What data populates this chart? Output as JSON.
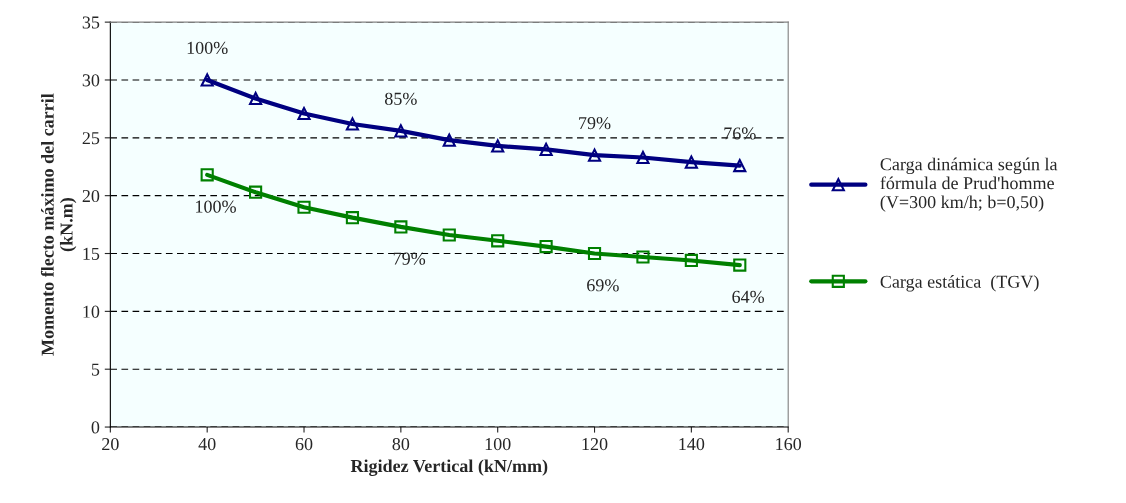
{
  "chart_data": {
    "type": "line",
    "xlabel": "Rigidez Vertical (kN/mm)",
    "ylabel": "Momento flecto máximo del carril\n(kN.m)",
    "x": [
      40,
      50,
      60,
      70,
      80,
      90,
      100,
      110,
      120,
      130,
      140,
      150
    ],
    "series": [
      {
        "name": "Carga dinámica según la\nfórmula de Prud'homme\n(V=300 km/h; b=0,50)",
        "color": "#000080",
        "marker": "triangle",
        "values": [
          30.0,
          28.4,
          27.1,
          26.2,
          25.6,
          24.8,
          24.3,
          24.0,
          23.5,
          23.3,
          22.9,
          22.6
        ]
      },
      {
        "name": "Carga estática  (TGV)",
        "color": "#008000",
        "marker": "square",
        "values": [
          21.8,
          20.3,
          19.0,
          18.1,
          17.3,
          16.6,
          16.1,
          15.6,
          15.0,
          14.7,
          14.4,
          14.0
        ]
      }
    ],
    "annotations": [
      {
        "text": "100%",
        "x": 40,
        "y": 30.0
      },
      {
        "text": "85%",
        "x": 80,
        "y": 25.6
      },
      {
        "text": "79%",
        "x": 120,
        "y": 23.5
      },
      {
        "text": "76%",
        "x": 150,
        "y": 22.6
      },
      {
        "text": "100%",
        "x": 40,
        "y": 21.8
      },
      {
        "text": "79%",
        "x": 80,
        "y": 17.3
      },
      {
        "text": "69%",
        "x": 120,
        "y": 15.0
      },
      {
        "text": "64%",
        "x": 150,
        "y": 14.0
      }
    ],
    "xlim": [
      20,
      160
    ],
    "xticks": [
      20,
      40,
      60,
      80,
      100,
      120,
      140,
      160
    ],
    "ylim": [
      0,
      35
    ],
    "yticks": [
      0,
      5,
      10,
      15,
      20,
      25,
      30,
      35
    ],
    "grid": "y",
    "legend": "right",
    "line_style": "solid"
  }
}
